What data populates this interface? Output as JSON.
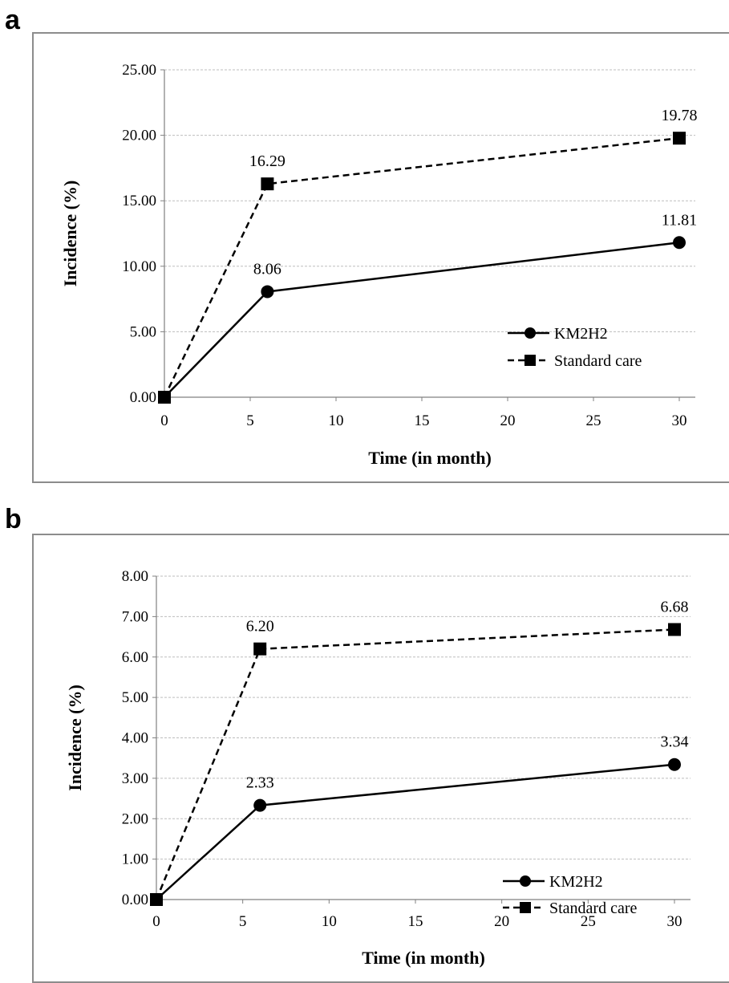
{
  "chart_data": [
    {
      "panel": "a",
      "type": "line",
      "xlabel": "Time (in month)",
      "ylabel": "Incidence (%)",
      "xlim": [
        0,
        30
      ],
      "ylim": [
        0,
        25
      ],
      "x_ticks": [
        "0",
        "5",
        "10",
        "15",
        "20",
        "25",
        "30"
      ],
      "y_ticks": [
        "0.00",
        "5.00",
        "10.00",
        "15.00",
        "20.00",
        "25.00"
      ],
      "grid": "horizontal",
      "legend_position": "bottom-right",
      "series": [
        {
          "name": "KM2H2",
          "style": "solid",
          "marker": "circle",
          "x": [
            0,
            6,
            30
          ],
          "y": [
            0,
            8.06,
            11.81
          ],
          "labels": [
            "",
            "8.06",
            "11.81"
          ]
        },
        {
          "name": "Standard care",
          "style": "dashed",
          "marker": "square",
          "x": [
            0,
            6,
            30
          ],
          "y": [
            0,
            16.29,
            19.78
          ],
          "labels": [
            "",
            "16.29",
            "19.78"
          ]
        }
      ]
    },
    {
      "panel": "b",
      "type": "line",
      "xlabel": "Time (in month)",
      "ylabel": "Incidence (%)",
      "xlim": [
        0,
        30
      ],
      "ylim": [
        0,
        8
      ],
      "x_ticks": [
        "0",
        "5",
        "10",
        "15",
        "20",
        "25",
        "30"
      ],
      "y_ticks": [
        "0.00",
        "1.00",
        "2.00",
        "3.00",
        "4.00",
        "5.00",
        "6.00",
        "7.00",
        "8.00"
      ],
      "grid": "horizontal",
      "legend_position": "bottom-right",
      "series": [
        {
          "name": "KM2H2",
          "style": "solid",
          "marker": "circle",
          "x": [
            0,
            6,
            30
          ],
          "y": [
            0,
            2.33,
            3.34
          ],
          "labels": [
            "",
            "2.33",
            "3.34"
          ]
        },
        {
          "name": "Standard care",
          "style": "dashed",
          "marker": "square",
          "x": [
            0,
            6,
            30
          ],
          "y": [
            0,
            6.2,
            6.68
          ],
          "labels": [
            "",
            "6.20",
            "6.68"
          ]
        }
      ]
    }
  ]
}
